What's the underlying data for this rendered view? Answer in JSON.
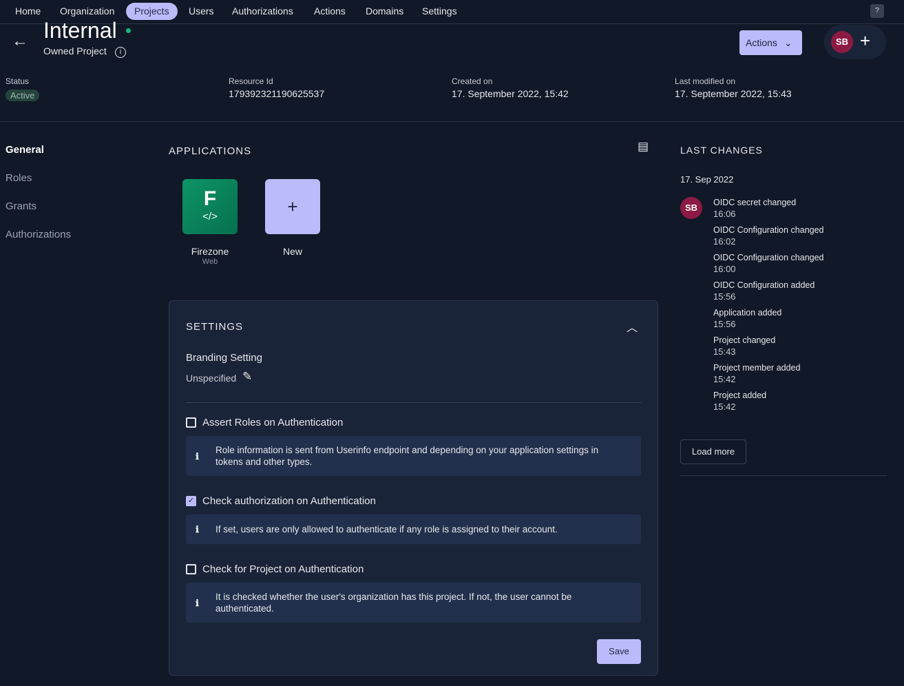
{
  "nav": {
    "items": [
      "Home",
      "Organization",
      "Projects",
      "Users",
      "Authorizations",
      "Actions",
      "Domains",
      "Settings"
    ],
    "active": "Projects",
    "help": "?"
  },
  "header": {
    "title": "Internal",
    "subtitle": "Owned Project",
    "actions_label": "Actions",
    "avatar": "SB"
  },
  "meta": {
    "status_label": "Status",
    "status": "Active",
    "resource_label": "Resource Id",
    "resource": "179392321190625537",
    "created_label": "Created on",
    "created": "17. September 2022, 15:42",
    "modified_label": "Last modified on",
    "modified": "17. September 2022, 15:43"
  },
  "sidebar": {
    "items": [
      "General",
      "Roles",
      "Grants",
      "Authorizations"
    ]
  },
  "applications": {
    "title": "APPLICATIONS",
    "apps": [
      {
        "letter": "F",
        "name": "Firezone",
        "type": "Web"
      }
    ],
    "new_label": "New"
  },
  "settings": {
    "title": "SETTINGS",
    "branding_label": "Branding Setting",
    "branding_value": "Unspecified",
    "options": [
      {
        "label": "Assert Roles on Authentication",
        "checked": false,
        "info": "Role information is sent from Userinfo endpoint and depending on your application settings in tokens and other types."
      },
      {
        "label": "Check authorization on Authentication",
        "checked": true,
        "info": "If set, users are only allowed to authenticate if any role is assigned to their account."
      },
      {
        "label": "Check for Project on Authentication",
        "checked": false,
        "info": "It is checked whether the user's organization has this project. If not, the user cannot be authenticated."
      }
    ],
    "save_label": "Save"
  },
  "changes": {
    "title": "LAST CHANGES",
    "date": "17. Sep 2022",
    "avatar": "SB",
    "items": [
      {
        "text": "OIDC secret changed",
        "time": "16:06"
      },
      {
        "text": "OIDC Configuration changed",
        "time": "16:02"
      },
      {
        "text": "OIDC Configuration changed",
        "time": "16:00"
      },
      {
        "text": "OIDC Configuration added",
        "time": "15:56"
      },
      {
        "text": "Application added",
        "time": "15:56"
      },
      {
        "text": "Project changed",
        "time": "15:43"
      },
      {
        "text": "Project member added",
        "time": "15:42"
      },
      {
        "text": "Project added",
        "time": "15:42"
      }
    ],
    "load_more": "Load more"
  }
}
